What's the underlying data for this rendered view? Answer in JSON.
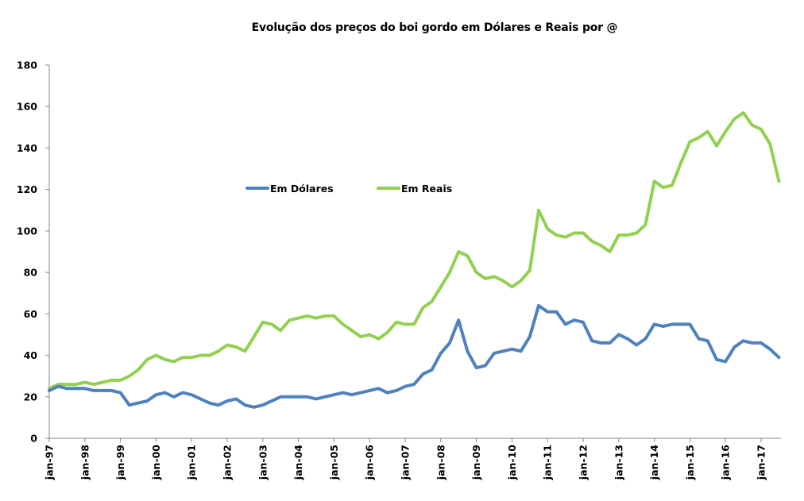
{
  "chart_data": {
    "type": "line",
    "title": "Evolução dos preços do boi gordo em Dólares e Reais por @",
    "xlabel": "",
    "ylabel": "",
    "ylim": [
      0,
      180
    ],
    "yticks": [
      0,
      20,
      40,
      60,
      80,
      100,
      120,
      140,
      160,
      180
    ],
    "xticks": [
      "jan-97",
      "jan-98",
      "jan-99",
      "jan-00",
      "jan-01",
      "jan-02",
      "jan-03",
      "jan-04",
      "jan-05",
      "jan-06",
      "jan-07",
      "jan-08",
      "jan-09",
      "jan-10",
      "jan-11",
      "jan-12",
      "jan-13",
      "jan-14",
      "jan-15",
      "jan-16",
      "jan-17"
    ],
    "x_start_year": 1997,
    "x_end_year": 2017.5,
    "grid": false,
    "legend_position": "center-left",
    "x": [
      1997.0,
      1997.25,
      1997.5,
      1997.75,
      1998.0,
      1998.25,
      1998.5,
      1998.75,
      1999.0,
      1999.25,
      1999.5,
      1999.75,
      2000.0,
      2000.25,
      2000.5,
      2000.75,
      2001.0,
      2001.25,
      2001.5,
      2001.75,
      2002.0,
      2002.25,
      2002.5,
      2002.75,
      2003.0,
      2003.25,
      2003.5,
      2003.75,
      2004.0,
      2004.25,
      2004.5,
      2004.75,
      2005.0,
      2005.25,
      2005.5,
      2005.75,
      2006.0,
      2006.25,
      2006.5,
      2006.75,
      2007.0,
      2007.25,
      2007.5,
      2007.75,
      2008.0,
      2008.25,
      2008.5,
      2008.75,
      2009.0,
      2009.25,
      2009.5,
      2009.75,
      2010.0,
      2010.25,
      2010.5,
      2010.75,
      2011.0,
      2011.25,
      2011.5,
      2011.75,
      2012.0,
      2012.25,
      2012.5,
      2012.75,
      2013.0,
      2013.25,
      2013.5,
      2013.75,
      2014.0,
      2014.25,
      2014.5,
      2014.75,
      2015.0,
      2015.25,
      2015.5,
      2015.75,
      2016.0,
      2016.25,
      2016.5,
      2016.75,
      2017.0,
      2017.25,
      2017.5
    ],
    "series": [
      {
        "name": "Em Dólares",
        "color": "#4f81bd",
        "values": [
          23,
          25,
          24,
          24,
          24,
          23,
          23,
          23,
          22,
          16,
          17,
          18,
          21,
          22,
          20,
          22,
          21,
          19,
          17,
          16,
          18,
          19,
          16,
          15,
          16,
          18,
          20,
          20,
          20,
          20,
          19,
          20,
          21,
          22,
          21,
          22,
          23,
          24,
          22,
          23,
          25,
          26,
          31,
          33,
          41,
          46,
          57,
          42,
          34,
          35,
          41,
          42,
          43,
          42,
          49,
          64,
          61,
          61,
          55,
          57,
          56,
          47,
          46,
          46,
          50,
          48,
          45,
          48,
          55,
          54,
          55,
          55,
          55,
          48,
          47,
          38,
          37,
          44,
          47,
          46,
          46,
          43,
          39
        ]
      },
      {
        "name": "Em Reais",
        "color": "#92d050",
        "values": [
          24,
          26,
          26,
          26,
          27,
          26,
          27,
          28,
          28,
          30,
          33,
          38,
          40,
          38,
          37,
          39,
          39,
          40,
          40,
          42,
          45,
          44,
          42,
          49,
          56,
          55,
          52,
          57,
          58,
          59,
          58,
          59,
          59,
          55,
          52,
          49,
          50,
          48,
          51,
          56,
          55,
          55,
          63,
          66,
          73,
          80,
          90,
          88,
          80,
          77,
          78,
          76,
          73,
          76,
          81,
          110,
          101,
          98,
          97,
          99,
          99,
          95,
          93,
          90,
          98,
          98,
          99,
          103,
          124,
          121,
          122,
          133,
          143,
          145,
          148,
          141,
          148,
          154,
          157,
          151,
          149,
          142,
          124
        ]
      }
    ]
  }
}
